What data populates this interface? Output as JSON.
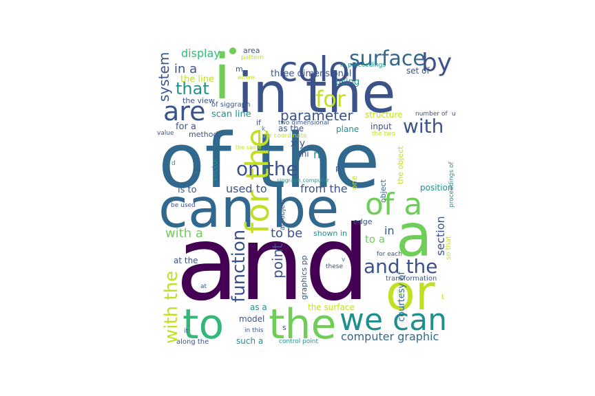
{
  "title": "",
  "palette": {
    "purple": "#440154",
    "indigo": "#3b528b",
    "blue": "#31688e",
    "teal": "#21908d",
    "green": "#35b779",
    "lime": "#6ece58",
    "yellow": "#c2df23",
    "bright_yellow": "#fde725"
  },
  "words": [
    {
      "text": "and",
      "color": "purple"
    },
    {
      "text": "of the",
      "color": "blue"
    },
    {
      "text": "in the",
      "color": "indigo"
    },
    {
      "text": "i",
      "color": "lime"
    },
    {
      "text": "can be",
      "color": "blue"
    },
    {
      "text": "a",
      "color": "lime"
    },
    {
      "text": "or",
      "color": "yellow"
    },
    {
      "text": "to",
      "color": "green"
    },
    {
      "text": "the",
      "color": "lime"
    },
    {
      "text": "we can",
      "color": "teal"
    },
    {
      "text": "for the",
      "color": "yellow"
    },
    {
      "text": "of a",
      "color": "lime"
    },
    {
      "text": "color",
      "color": "indigo"
    },
    {
      "text": "surface",
      "color": "blue"
    },
    {
      "text": "by",
      "color": "indigo"
    },
    {
      "text": "are",
      "color": "indigo"
    },
    {
      "text": "for",
      "color": "yellow"
    },
    {
      "text": "with",
      "color": "indigo"
    },
    {
      "text": "on the",
      "color": "indigo"
    },
    {
      "text": "and the",
      "color": "indigo"
    },
    {
      "text": "with the",
      "color": "yellow"
    },
    {
      "text": "function",
      "color": "indigo"
    },
    {
      "text": "parameter",
      "color": "indigo"
    },
    {
      "text": "that",
      "color": "teal"
    },
    {
      "text": "system",
      "color": "indigo"
    },
    {
      "text": "in a",
      "color": "indigo"
    },
    {
      "text": "display",
      "color": "green"
    },
    {
      "text": "with a",
      "color": "lime"
    },
    {
      "text": "point",
      "color": "indigo"
    },
    {
      "text": "to be",
      "color": "indigo"
    },
    {
      "text": "used to",
      "color": "indigo"
    },
    {
      "text": "from the",
      "color": "indigo"
    },
    {
      "text": "computer graphic",
      "color": "blue"
    },
    {
      "text": "section",
      "color": "indigo"
    },
    {
      "text": "courtesy of",
      "color": "blue"
    },
    {
      "text": "three dimensional",
      "color": "indigo"
    },
    {
      "text": "scan line",
      "color": "teal"
    },
    {
      "text": "for a",
      "color": "indigo"
    },
    {
      "text": "the line",
      "color": "yellow"
    },
    {
      "text": "the view",
      "color": "indigo"
    },
    {
      "text": "area",
      "color": "indigo"
    },
    {
      "text": "using",
      "color": "teal"
    },
    {
      "text": "set of",
      "color": "indigo"
    },
    {
      "text": "structure",
      "color": "yellow"
    },
    {
      "text": "input",
      "color": "indigo"
    },
    {
      "text": "as the",
      "color": "indigo"
    },
    {
      "text": "x y",
      "color": "indigo"
    },
    {
      "text": "thi",
      "color": "indigo"
    },
    {
      "text": "n",
      "color": "teal"
    },
    {
      "text": "plane",
      "color": "teal"
    },
    {
      "text": "method",
      "color": "indigo"
    },
    {
      "text": "vector",
      "color": "teal"
    },
    {
      "text": "is to",
      "color": "indigo"
    },
    {
      "text": "be used",
      "color": "indigo"
    },
    {
      "text": "value",
      "color": "indigo"
    },
    {
      "text": "at the",
      "color": "indigo"
    },
    {
      "text": "graphics pp",
      "color": "indigo"
    },
    {
      "text": "an object",
      "color": "indigo"
    },
    {
      "text": "shown in",
      "color": "teal"
    },
    {
      "text": "to a",
      "color": "lime"
    },
    {
      "text": "edge",
      "color": "indigo"
    },
    {
      "text": "in",
      "color": "indigo"
    },
    {
      "text": "position",
      "color": "teal"
    },
    {
      "text": "the object",
      "color": "yellow"
    },
    {
      "text": "object",
      "color": "blue"
    },
    {
      "text": "one",
      "color": "yellow"
    },
    {
      "text": "p",
      "color": "indigo"
    },
    {
      "text": "transformation",
      "color": "indigo"
    },
    {
      "text": "so that",
      "color": "yellow"
    },
    {
      "text": "proceedings of",
      "color": "teal"
    },
    {
      "text": "these",
      "color": "indigo"
    },
    {
      "text": "v",
      "color": "teal"
    },
    {
      "text": "for each",
      "color": "indigo"
    },
    {
      "text": "at",
      "color": "indigo"
    },
    {
      "text": "as a",
      "color": "teal"
    },
    {
      "text": "the surface",
      "color": "yellow"
    },
    {
      "text": "model",
      "color": "indigo"
    },
    {
      "text": "s",
      "color": "indigo"
    },
    {
      "text": "such a",
      "color": "teal"
    },
    {
      "text": "in this",
      "color": "indigo"
    },
    {
      "text": "it",
      "color": "indigo"
    },
    {
      "text": "along the",
      "color": "indigo"
    },
    {
      "text": "control point",
      "color": "teal"
    },
    {
      "text": "two dimensional",
      "color": "indigo"
    },
    {
      "text": "the coordinate",
      "color": "yellow"
    },
    {
      "text": "the two",
      "color": "yellow"
    },
    {
      "text": "number of",
      "color": "indigo"
    },
    {
      "text": "u",
      "color": "indigo"
    },
    {
      "text": "in proceedings",
      "color": "teal"
    },
    {
      "text": "pattern",
      "color": "yellow"
    },
    {
      "text": "where",
      "color": "yellow"
    },
    {
      "text": "of siggraph",
      "color": "indigo"
    },
    {
      "text": "m",
      "color": "indigo"
    },
    {
      "text": "if",
      "color": "indigo"
    },
    {
      "text": "k",
      "color": "teal"
    },
    {
      "text": "the same",
      "color": "yellow"
    },
    {
      "text": "d",
      "color": "teal"
    },
    {
      "text": "siggraph computer",
      "color": "teal"
    },
    {
      "text": "b",
      "color": "yellow"
    },
    {
      "text": "t",
      "color": "yellow"
    },
    {
      "text": "",
      "color": "lime"
    }
  ]
}
